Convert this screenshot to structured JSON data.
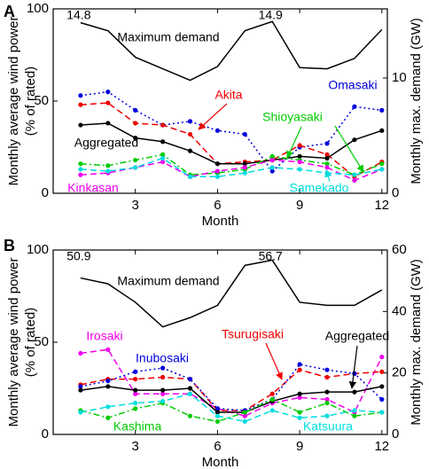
{
  "chart_data": [
    {
      "type": "line",
      "panel": "A",
      "xlabel": "Month",
      "ylabel": [
        "Monthly average wind power",
        "(% of rated)"
      ],
      "y2label": "Monthly max. demand (GW)",
      "x": [
        1,
        2,
        3,
        4,
        5,
        6,
        7,
        8,
        9,
        10,
        11,
        12
      ],
      "xlim": [
        0,
        12.2
      ],
      "xticks": [
        3,
        6,
        9,
        12
      ],
      "ylim": [
        0,
        100
      ],
      "yticks": [
        0,
        50,
        100
      ],
      "y2lim": [
        0,
        16
      ],
      "y2ticks": [
        0,
        10
      ],
      "series": [
        {
          "name": "Maximum demand",
          "color": "#000000",
          "dash": "solid",
          "markers": false,
          "axis": "y2",
          "values": [
            14.8,
            14.1,
            11.8,
            10.8,
            9.8,
            11.0,
            14.1,
            14.9,
            10.9,
            10.8,
            11.7,
            14.2
          ],
          "value_labels": [
            "14.8",
            null,
            null,
            null,
            null,
            null,
            null,
            "14.9",
            null,
            null,
            null,
            null
          ]
        },
        {
          "name": "Omasaki",
          "color": "#0000dd",
          "dash": "dot",
          "markers": true,
          "values": [
            53,
            55,
            45,
            37,
            39,
            34,
            32,
            12,
            25,
            27,
            47,
            45
          ]
        },
        {
          "name": "Akita",
          "color": "#ee0000",
          "dash": "dash",
          "markers": true,
          "values": [
            48,
            49,
            38,
            37,
            32,
            16,
            17,
            18,
            26,
            21,
            9,
            17
          ]
        },
        {
          "name": "Aggregated",
          "color": "#000000",
          "dash": "solid",
          "markers": true,
          "values": [
            37,
            38,
            30,
            28,
            23,
            16,
            16,
            18,
            20,
            19,
            29,
            34
          ]
        },
        {
          "name": "Shioyasaki",
          "color": "#00cc00",
          "dash": "dashdot",
          "markers": true,
          "values": [
            16,
            15,
            18,
            21,
            10,
            11,
            13,
            20,
            18,
            16,
            10,
            16
          ]
        },
        {
          "name": "Kinkasan",
          "color": "#ee00ee",
          "dash": "dash",
          "markers": true,
          "values": [
            10,
            11,
            14,
            17,
            9,
            12,
            14,
            18,
            17,
            14,
            7,
            13
          ]
        },
        {
          "name": "Samekado",
          "color": "#00dddd",
          "dash": "dash",
          "markers": true,
          "values": [
            13,
            12,
            14,
            19,
            9,
            9,
            11,
            14,
            13,
            11,
            10,
            13
          ]
        }
      ]
    },
    {
      "type": "line",
      "panel": "B",
      "xlabel": "Month",
      "ylabel": [
        "Monthly average wind power",
        "(% of rated)"
      ],
      "y2label": "Monthly max. demand (GW)",
      "x": [
        1,
        2,
        3,
        4,
        5,
        6,
        7,
        8,
        9,
        10,
        11,
        12
      ],
      "xlim": [
        0,
        12.2
      ],
      "xticks": [
        3,
        6,
        9,
        12
      ],
      "ylim": [
        0,
        100
      ],
      "yticks": [
        0,
        50,
        100
      ],
      "y2lim": [
        0,
        60
      ],
      "y2ticks": [
        0,
        20,
        40,
        60
      ],
      "series": [
        {
          "name": "Maximum demand",
          "color": "#000000",
          "dash": "solid",
          "markers": false,
          "axis": "y2",
          "values": [
            50.9,
            49,
            43,
            35,
            38,
            42,
            55,
            56.7,
            43,
            42,
            42,
            47
          ],
          "value_labels": [
            "50.9",
            null,
            null,
            null,
            null,
            null,
            null,
            "56.7",
            null,
            null,
            null,
            null
          ]
        },
        {
          "name": "Irosaki",
          "color": "#ee00ee",
          "dash": "dash",
          "markers": true,
          "values": [
            44,
            46,
            22,
            22,
            22,
            14,
            10,
            17,
            20,
            19,
            12,
            42
          ]
        },
        {
          "name": "Tsurugisaki",
          "color": "#ee0000",
          "dash": "dash",
          "markers": true,
          "values": [
            27,
            30,
            30,
            31,
            30,
            13,
            13,
            22,
            35,
            31,
            33,
            34
          ]
        },
        {
          "name": "Inubosaki",
          "color": "#0000dd",
          "dash": "dot",
          "markers": true,
          "values": [
            26,
            29,
            34,
            36,
            30,
            14,
            13,
            19,
            38,
            35,
            33,
            19
          ]
        },
        {
          "name": "Aggregated",
          "color": "#000000",
          "dash": "solid",
          "markers": true,
          "values": [
            24,
            26,
            24,
            24,
            25,
            12,
            12,
            18,
            22,
            23,
            23,
            26
          ]
        },
        {
          "name": "Kashima",
          "color": "#00cc00",
          "dash": "dashdot",
          "markers": true,
          "values": [
            13,
            9,
            14,
            17,
            10,
            7,
            12,
            19,
            12,
            17,
            10,
            12
          ]
        },
        {
          "name": "Katsuura",
          "color": "#00dddd",
          "dash": "dash",
          "markers": true,
          "values": [
            12,
            15,
            17,
            18,
            22,
            10,
            7,
            13,
            9,
            10,
            13,
            12
          ]
        }
      ]
    }
  ]
}
